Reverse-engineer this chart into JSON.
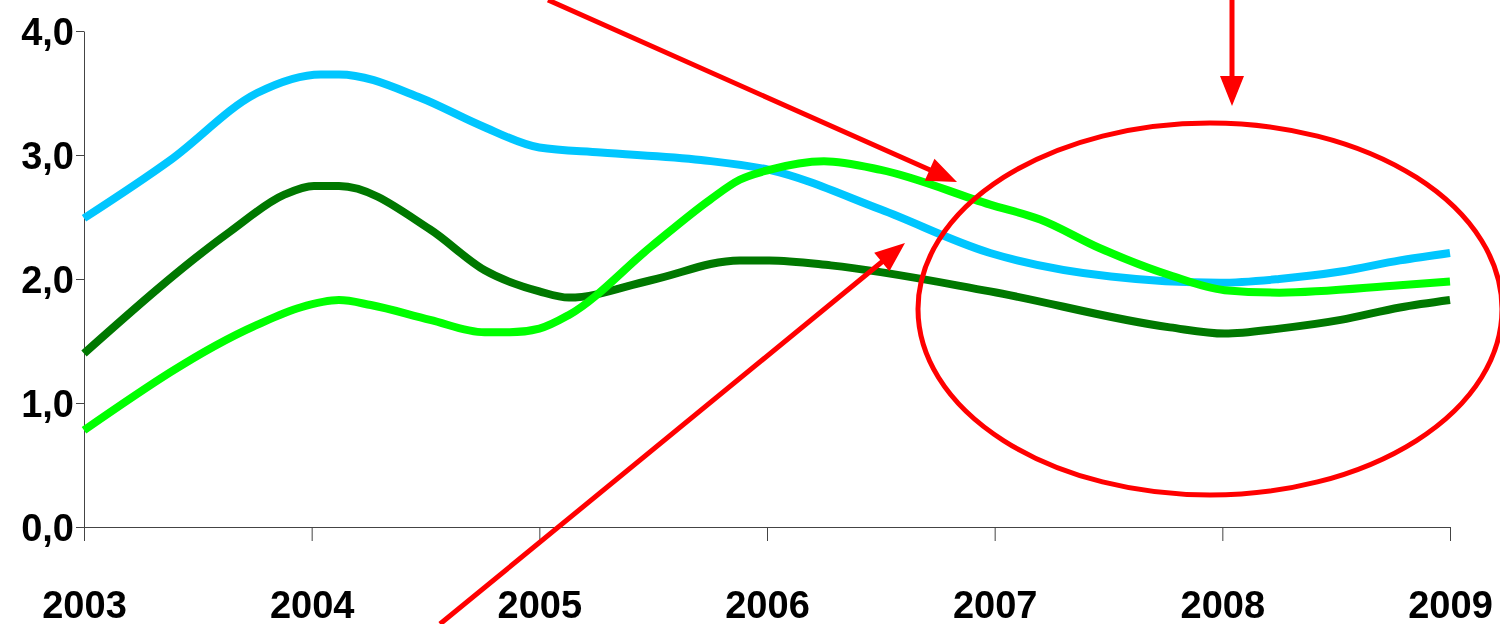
{
  "chart_data": {
    "type": "line",
    "xlim": [
      2003,
      2009
    ],
    "xticks": [
      2003,
      2004,
      2005,
      2006,
      2007,
      2008,
      2009
    ],
    "ylim": [
      0,
      4
    ],
    "yticks": [
      {
        "value": 0,
        "label": "0,0"
      },
      {
        "value": 1,
        "label": "1,0"
      },
      {
        "value": 2,
        "label": "2,0"
      },
      {
        "value": 3,
        "label": "3,0"
      },
      {
        "value": 4,
        "label": "4,0"
      }
    ],
    "grid": false,
    "marker": "none",
    "line_style": "solid",
    "series": [
      {
        "color": "#00c6ff",
        "x": [
          2003,
          2003.38,
          2003.76,
          2004.04,
          2004.12,
          2004.48,
          2004.74,
          2005.0,
          2005.27,
          2005.71,
          2006.01,
          2006.5,
          2006.98,
          2007.51,
          2007.99,
          2008.25,
          2008.52,
          2008.78,
          2009
        ],
        "values": [
          2.49,
          2.96,
          3.5,
          3.65,
          3.65,
          3.46,
          3.24,
          3.06,
          3.02,
          2.96,
          2.88,
          2.56,
          2.21,
          2.02,
          1.97,
          2.0,
          2.06,
          2.15,
          2.21
        ]
      },
      {
        "color": "#007800",
        "x": [
          2003,
          2003.64,
          2003.88,
          2004.01,
          2004.12,
          2004.52,
          2004.76,
          2005.0,
          2005.13,
          2005.49,
          2005.88,
          2006.01,
          2006.28,
          2006.98,
          2007.77,
          2008.01,
          2008.25,
          2008.52,
          2008.78,
          2009
        ],
        "values": [
          1.4,
          2.38,
          2.68,
          2.75,
          2.75,
          2.4,
          2.07,
          1.9,
          1.85,
          1.99,
          2.15,
          2.15,
          2.11,
          1.9,
          1.61,
          1.56,
          1.6,
          1.67,
          1.77,
          1.83
        ]
      },
      {
        "color": "#00ff00",
        "x": [
          2003,
          2003.76,
          2003.95,
          2004.12,
          2004.26,
          2004.52,
          2004.76,
          2004.87,
          2005.0,
          2005.13,
          2005.49,
          2005.75,
          2005.88,
          2006.01,
          2006.25,
          2006.5,
          2006.98,
          2007.2,
          2007.46,
          2007.77,
          2008.01,
          2008.25,
          2008.78,
          2009
        ],
        "values": [
          0.78,
          1.63,
          1.77,
          1.83,
          1.79,
          1.67,
          1.57,
          1.57,
          1.6,
          1.71,
          2.26,
          2.64,
          2.8,
          2.88,
          2.95,
          2.88,
          2.6,
          2.48,
          2.25,
          2.03,
          1.91,
          1.89,
          1.95,
          1.98
        ]
      }
    ]
  }
}
